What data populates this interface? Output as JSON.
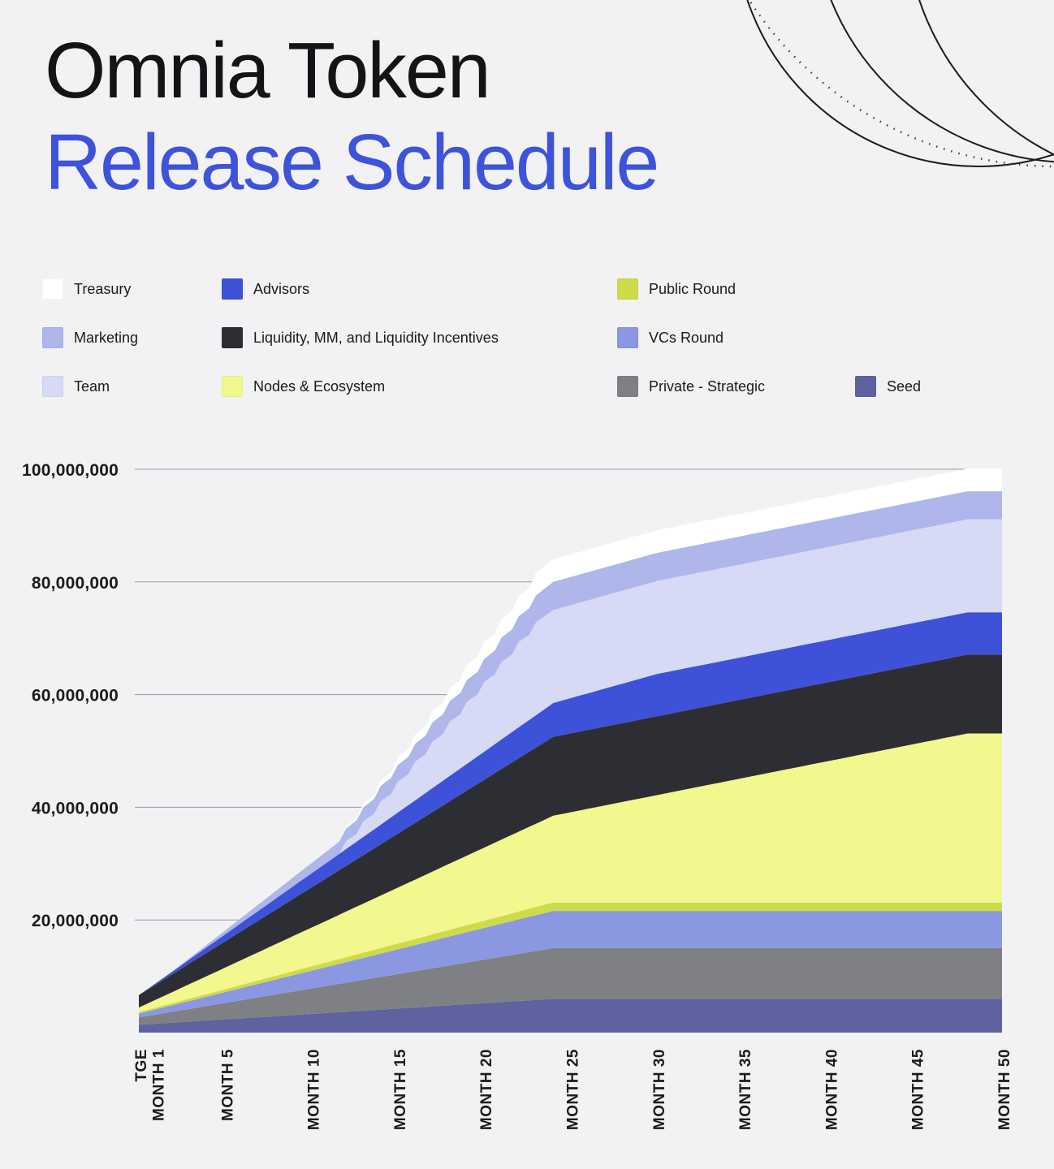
{
  "title": {
    "line1": "Omnia Token",
    "line2": "Release Schedule"
  },
  "colors": {
    "background": "#F2F2F4",
    "title_primary": "#141417",
    "title_accent": "#3D53D9",
    "grid": "#9B9BA1",
    "axis_label": "#1B1B1E",
    "decorative_line": "#1B1B1B"
  },
  "legend": {
    "items": [
      {
        "label": "Treasury",
        "color": "#FFFFFF",
        "col": 0,
        "row": 0
      },
      {
        "label": "Marketing",
        "color": "#AFB6E9",
        "col": 0,
        "row": 1
      },
      {
        "label": "Team",
        "color": "#D7DAF5",
        "col": 0,
        "row": 2
      },
      {
        "label": "Advisors",
        "color": "#3D52D8",
        "col": 1,
        "row": 0
      },
      {
        "label": "Liquidity, MM, and Liquidity Incentives",
        "color": "#2D2E33",
        "col": 1,
        "row": 1
      },
      {
        "label": "Nodes & Ecosystem",
        "color": "#F2F78E",
        "col": 1,
        "row": 2
      },
      {
        "label": "Public Round",
        "color": "#CEDB49",
        "col": 2,
        "row": 0
      },
      {
        "label": "VCs Round",
        "color": "#8C97E1",
        "col": 2,
        "row": 1
      },
      {
        "label": "Private - Strategic",
        "color": "#7F8083",
        "col": 2,
        "row": 2
      },
      {
        "label": "Seed",
        "color": "#5E63A0",
        "col": 3,
        "row": 2
      }
    ]
  },
  "chart_data": {
    "type": "area",
    "stacked": true,
    "title": "Omnia Token Release Schedule",
    "unit": "tokens (millions)",
    "x_unit": "months after TGE",
    "ylim": [
      0,
      100
    ],
    "grid": true,
    "x": [
      0,
      1,
      2,
      3,
      4,
      5,
      6,
      7,
      8,
      9,
      10,
      11,
      12,
      13,
      14,
      15,
      16,
      17,
      18,
      19,
      20,
      21,
      22,
      23,
      24,
      25,
      26,
      27,
      28,
      29,
      30,
      31,
      32,
      33,
      34,
      35,
      36,
      37,
      38,
      39,
      40,
      41,
      42,
      43,
      44,
      45,
      46,
      47,
      48,
      49,
      50
    ],
    "x_ticks": [
      {
        "month": 0,
        "label": "TGE"
      },
      {
        "month": 1,
        "label": "MONTH 1"
      },
      {
        "month": 5,
        "label": "MONTH 5"
      },
      {
        "month": 10,
        "label": "MONTH 10"
      },
      {
        "month": 15,
        "label": "MONTH 15"
      },
      {
        "month": 20,
        "label": "MONTH 20"
      },
      {
        "month": 25,
        "label": "MONTH 25"
      },
      {
        "month": 30,
        "label": "MONTH 30"
      },
      {
        "month": 35,
        "label": "MONTH 35"
      },
      {
        "month": 40,
        "label": "MONTH 40"
      },
      {
        "month": 45,
        "label": "MONTH 45"
      },
      {
        "month": 50,
        "label": "MONTH 50"
      }
    ],
    "y_ticks": [
      {
        "value": 20,
        "label": "20,000,000"
      },
      {
        "value": 40,
        "label": "40,000,000"
      },
      {
        "value": 60,
        "label": "60,000,000"
      },
      {
        "value": 80,
        "label": "80,000,000"
      },
      {
        "value": 100,
        "label": "100,000,000"
      }
    ],
    "series": [
      {
        "name": "Seed",
        "color": "#5E63A0",
        "stepped": false,
        "values": [
          1.4,
          1.59,
          1.78,
          1.98,
          2.17,
          2.36,
          2.55,
          2.74,
          2.93,
          3.13,
          3.32,
          3.51,
          3.7,
          3.89,
          4.08,
          4.28,
          4.47,
          4.66,
          4.85,
          5.04,
          5.23,
          5.43,
          5.62,
          5.81,
          6,
          6,
          6,
          6,
          6,
          6,
          6,
          6,
          6,
          6,
          6,
          6,
          6,
          6,
          6,
          6,
          6,
          6,
          6,
          6,
          6,
          6,
          6,
          6,
          6,
          6,
          6
        ]
      },
      {
        "name": "Private - Strategic",
        "color": "#7F8083",
        "stepped": false,
        "values": [
          1.3,
          1.62,
          1.94,
          2.26,
          2.58,
          2.9,
          3.23,
          3.55,
          3.87,
          4.19,
          4.51,
          4.83,
          5.15,
          5.47,
          5.79,
          6.11,
          6.43,
          6.76,
          7.08,
          7.4,
          7.72,
          8.04,
          8.36,
          8.68,
          9,
          9,
          9,
          9,
          9,
          9,
          9,
          9,
          9,
          9,
          9,
          9,
          9,
          9,
          9,
          9,
          9,
          9,
          9,
          9,
          9,
          9,
          9,
          9,
          9,
          9,
          9
        ]
      },
      {
        "name": "VCs Round",
        "color": "#8C97E1",
        "stepped": false,
        "values": [
          0.7,
          0.95,
          1.19,
          1.44,
          1.68,
          1.93,
          2.18,
          2.42,
          2.67,
          2.91,
          3.16,
          3.4,
          3.65,
          3.9,
          4.14,
          4.39,
          4.63,
          4.88,
          5.13,
          5.37,
          5.62,
          5.86,
          6.11,
          6.35,
          6.6,
          6.6,
          6.6,
          6.6,
          6.6,
          6.6,
          6.6,
          6.6,
          6.6,
          6.6,
          6.6,
          6.6,
          6.6,
          6.6,
          6.6,
          6.6,
          6.6,
          6.6,
          6.6,
          6.6,
          6.6,
          6.6,
          6.6,
          6.6,
          6.6,
          6.6,
          6.6
        ]
      },
      {
        "name": "Public Round",
        "color": "#CEDB49",
        "stepped": false,
        "values": [
          0.25,
          0.3,
          0.35,
          0.41,
          0.46,
          0.51,
          0.56,
          0.61,
          0.67,
          0.72,
          0.77,
          0.82,
          0.88,
          0.93,
          0.98,
          1.03,
          1.08,
          1.14,
          1.19,
          1.24,
          1.29,
          1.34,
          1.4,
          1.45,
          1.5,
          1.5,
          1.5,
          1.5,
          1.5,
          1.5,
          1.5,
          1.5,
          1.5,
          1.5,
          1.5,
          1.5,
          1.5,
          1.5,
          1.5,
          1.5,
          1.5,
          1.5,
          1.5,
          1.5,
          1.5,
          1.5,
          1.5,
          1.5,
          1.5,
          1.5,
          1.5
        ]
      },
      {
        "name": "Nodes & Ecosystem",
        "color": "#F2F78E",
        "stepped": false,
        "values": [
          0.8,
          1.41,
          2.02,
          2.63,
          3.23,
          3.84,
          4.45,
          5.06,
          5.67,
          6.28,
          6.88,
          7.49,
          8.1,
          8.71,
          9.32,
          9.93,
          10.53,
          11.14,
          11.75,
          12.36,
          12.97,
          13.58,
          14.18,
          14.79,
          15.4,
          16.01,
          16.62,
          17.23,
          17.83,
          18.44,
          19.05,
          19.66,
          20.27,
          20.88,
          21.48,
          22.09,
          22.7,
          23.31,
          23.92,
          24.53,
          25.13,
          25.74,
          26.35,
          26.96,
          27.57,
          28.18,
          28.78,
          29.39,
          30,
          30,
          30
        ]
      },
      {
        "name": "Liquidity, MM, and Liquidity Incentives",
        "color": "#2D2E33",
        "stepped": false,
        "values": [
          2.2,
          2.69,
          3.18,
          3.68,
          4.17,
          4.66,
          5.15,
          5.64,
          6.13,
          6.63,
          7.12,
          7.61,
          8.1,
          8.59,
          9.08,
          9.58,
          10.07,
          10.56,
          11.05,
          11.54,
          12.03,
          12.53,
          13.02,
          13.51,
          14,
          14,
          14,
          14,
          14,
          14,
          14,
          14,
          14,
          14,
          14,
          14,
          14,
          14,
          14,
          14,
          14,
          14,
          14,
          14,
          14,
          14,
          14,
          14,
          14,
          14,
          14
        ]
      },
      {
        "name": "Advisors",
        "color": "#3D52D8",
        "stepped": false,
        "values": [
          0,
          0.25,
          0.5,
          0.75,
          1,
          1.25,
          1.5,
          1.75,
          2,
          2.25,
          2.5,
          2.75,
          3,
          3.25,
          3.5,
          3.75,
          4,
          4.25,
          4.5,
          4.75,
          5,
          5.25,
          5.5,
          5.75,
          6,
          6.25,
          6.5,
          6.75,
          7,
          7.25,
          7.5,
          7.5,
          7.5,
          7.5,
          7.5,
          7.5,
          7.5,
          7.5,
          7.5,
          7.5,
          7.5,
          7.5,
          7.5,
          7.5,
          7.5,
          7.5,
          7.5,
          7.5,
          7.5,
          7.5,
          7.5
        ]
      },
      {
        "name": "Team",
        "color": "#D7DAF5",
        "stepped": true,
        "values": [
          0,
          0,
          0,
          0,
          0,
          0,
          0,
          0,
          0,
          0,
          0,
          0,
          1.38,
          2.75,
          4.13,
          5.5,
          6.88,
          8.25,
          9.63,
          11,
          12.38,
          13.75,
          15.13,
          16.5,
          16.5,
          16.5,
          16.5,
          16.5,
          16.5,
          16.5,
          16.5,
          16.5,
          16.5,
          16.5,
          16.5,
          16.5,
          16.5,
          16.5,
          16.5,
          16.5,
          16.5,
          16.5,
          16.5,
          16.5,
          16.5,
          16.5,
          16.5,
          16.5,
          16.5,
          16.5,
          16.5
        ]
      },
      {
        "name": "Marketing",
        "color": "#AFB6E9",
        "stepped": false,
        "values": [
          0,
          0,
          0,
          0.23,
          0.45,
          0.68,
          0.91,
          1.14,
          1.36,
          1.59,
          1.82,
          2.05,
          2.27,
          2.5,
          2.73,
          2.95,
          3.18,
          3.41,
          3.64,
          3.86,
          4.09,
          4.32,
          4.55,
          4.77,
          5,
          5,
          5,
          5,
          5,
          5,
          5,
          5,
          5,
          5,
          5,
          5,
          5,
          5,
          5,
          5,
          5,
          5,
          5,
          5,
          5,
          5,
          5,
          5,
          5,
          5,
          5
        ]
      },
      {
        "name": "Treasury",
        "color": "#FFFFFF",
        "stepped": true,
        "values": [
          0,
          0,
          0,
          0,
          0,
          0,
          0,
          0,
          0,
          0,
          0,
          0,
          0.33,
          0.67,
          1,
          1.33,
          1.67,
          2,
          2.33,
          2.67,
          3,
          3.33,
          3.67,
          4,
          4,
          4,
          4,
          4,
          4,
          4,
          4,
          4,
          4,
          4,
          4,
          4,
          4,
          4,
          4,
          4,
          4,
          4,
          4,
          4,
          4,
          4,
          4,
          4,
          4,
          4,
          4
        ]
      }
    ]
  }
}
